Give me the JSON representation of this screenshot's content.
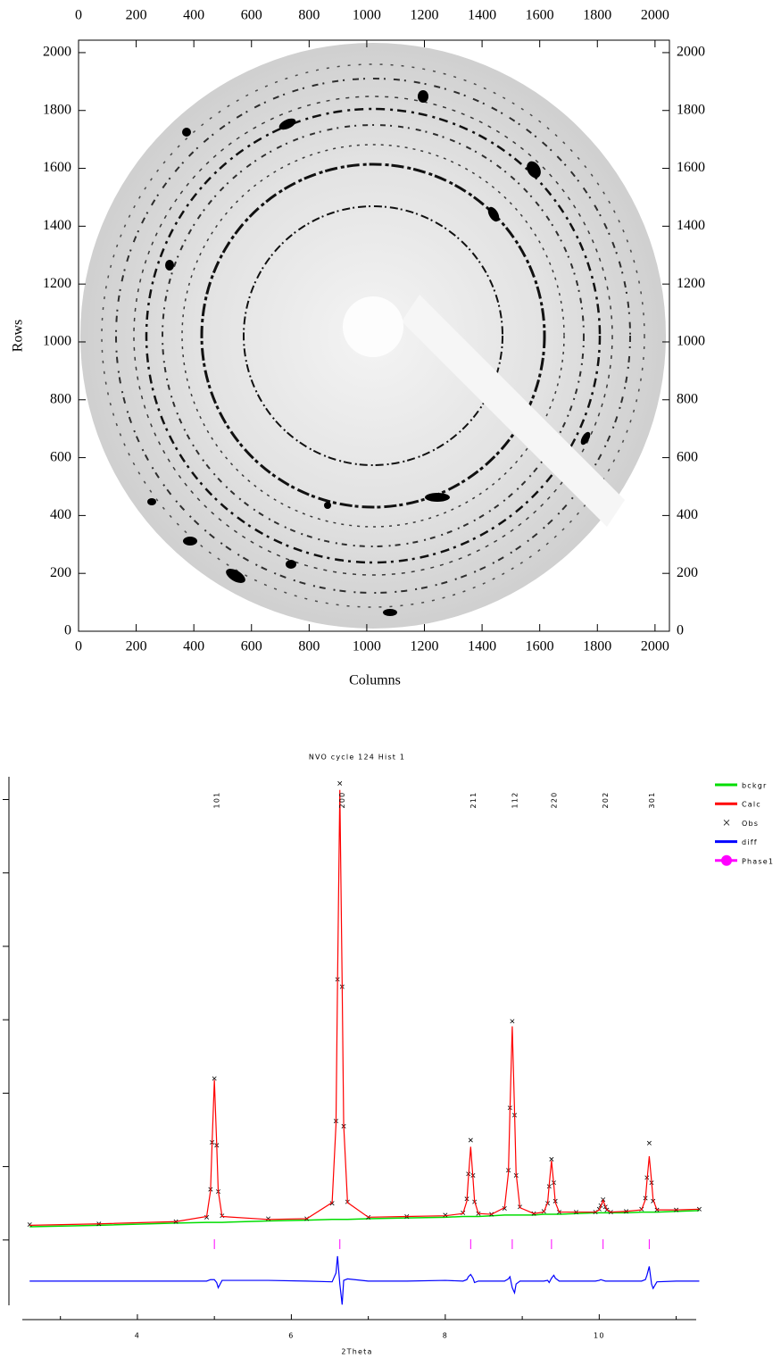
{
  "chart_data": [
    {
      "type": "image",
      "xlabel": "Columns",
      "ylabel": "Rows",
      "xlim": [
        0,
        2050
      ],
      "ylim": [
        0,
        2043
      ],
      "xticks": [
        0,
        200,
        400,
        600,
        800,
        1000,
        1200,
        1400,
        1600,
        1800,
        2000
      ],
      "yticks": [
        0,
        200,
        400,
        600,
        800,
        1000,
        1200,
        1400,
        1600,
        1800,
        2000
      ]
    },
    {
      "type": "line",
      "title": "NVO cycle 124 Hist 1",
      "xlabel": "2Theta",
      "xlim": [
        2.47,
        11.26
      ],
      "ylim": [
        -0.89,
        6.31
      ],
      "xticks": [
        4,
        6,
        8,
        10
      ],
      "xminorticks": [
        3,
        5,
        7,
        9,
        11
      ],
      "yticks": [
        0,
        1,
        2,
        3,
        4,
        5,
        6
      ],
      "show_ytick_labels": false,
      "x": [
        2.6,
        3.5,
        4.5,
        4.9,
        4.95,
        4.97,
        5.0,
        5.03,
        5.05,
        5.1,
        5.7,
        6.2,
        6.53,
        6.58,
        6.6,
        6.63,
        6.66,
        6.68,
        6.73,
        7.0,
        7.5,
        8.0,
        8.23,
        8.28,
        8.3,
        8.33,
        8.36,
        8.38,
        8.43,
        8.6,
        8.77,
        8.82,
        8.84,
        8.87,
        8.9,
        8.92,
        8.97,
        9.15,
        9.28,
        9.33,
        9.35,
        9.38,
        9.41,
        9.43,
        9.48,
        9.7,
        9.95,
        10.0,
        10.02,
        10.05,
        10.08,
        10.1,
        10.15,
        10.35,
        10.55,
        10.6,
        10.62,
        10.65,
        10.68,
        10.7,
        10.75,
        11.0,
        11.3
      ],
      "series": [
        {
          "name": "bckgr",
          "color": "#00dd00",
          "marker": "line",
          "values": [
            0.18,
            0.2,
            0.23,
            0.24,
            0.24,
            0.24,
            0.24,
            0.24,
            0.24,
            0.24,
            0.26,
            0.27,
            0.28,
            0.28,
            0.28,
            0.28,
            0.28,
            0.28,
            0.28,
            0.29,
            0.3,
            0.31,
            0.32,
            0.32,
            0.32,
            0.32,
            0.32,
            0.32,
            0.32,
            0.33,
            0.34,
            0.34,
            0.34,
            0.34,
            0.34,
            0.34,
            0.34,
            0.34,
            0.35,
            0.35,
            0.35,
            0.35,
            0.35,
            0.35,
            0.35,
            0.36,
            0.37,
            0.37,
            0.37,
            0.37,
            0.37,
            0.37,
            0.37,
            0.37,
            0.38,
            0.38,
            0.38,
            0.38,
            0.38,
            0.38,
            0.38,
            0.39,
            0.4
          ]
        },
        {
          "name": "Calc",
          "color": "#ff0000",
          "marker": "line",
          "values": [
            0.2,
            0.22,
            0.25,
            0.32,
            0.67,
            1.31,
            2.18,
            1.31,
            0.67,
            0.32,
            0.28,
            0.29,
            0.51,
            1.57,
            3.5,
            6.13,
            3.5,
            1.57,
            0.51,
            0.31,
            0.32,
            0.33,
            0.36,
            0.53,
            0.84,
            1.27,
            0.84,
            0.53,
            0.36,
            0.35,
            0.44,
            0.91,
            1.75,
            2.91,
            1.75,
            0.91,
            0.44,
            0.36,
            0.38,
            0.51,
            0.75,
            1.08,
            0.75,
            0.51,
            0.38,
            0.38,
            0.38,
            0.41,
            0.46,
            0.54,
            0.46,
            0.41,
            0.38,
            0.39,
            0.41,
            0.55,
            0.8,
            1.14,
            0.8,
            0.55,
            0.41,
            0.41,
            0.42
          ]
        },
        {
          "name": "Obs",
          "color": "#000000",
          "marker": "x",
          "values": [
            0.21,
            0.22,
            0.25,
            0.31,
            0.69,
            1.33,
            2.2,
            1.29,
            0.66,
            0.33,
            0.29,
            0.29,
            0.5,
            1.62,
            3.55,
            6.22,
            3.45,
            1.55,
            0.52,
            0.31,
            0.32,
            0.34,
            0.37,
            0.56,
            0.9,
            1.36,
            0.88,
            0.52,
            0.36,
            0.35,
            0.43,
            0.95,
            1.8,
            2.98,
            1.7,
            0.88,
            0.45,
            0.36,
            0.39,
            0.5,
            0.73,
            1.1,
            0.78,
            0.53,
            0.38,
            0.38,
            0.38,
            0.42,
            0.47,
            0.55,
            0.45,
            0.41,
            0.38,
            0.39,
            0.42,
            0.57,
            0.85,
            1.32,
            0.78,
            0.53,
            0.41,
            0.41,
            0.42
          ]
        },
        {
          "name": "diff",
          "color": "#0000ff",
          "marker": "line",
          "values": [
            -0.56,
            -0.56,
            -0.56,
            -0.56,
            -0.54,
            -0.54,
            -0.54,
            -0.58,
            -0.65,
            -0.55,
            -0.55,
            -0.56,
            -0.57,
            -0.45,
            -0.22,
            -0.6,
            -0.88,
            -0.55,
            -0.53,
            -0.56,
            -0.56,
            -0.55,
            -0.56,
            -0.54,
            -0.5,
            -0.47,
            -0.52,
            -0.58,
            -0.56,
            -0.56,
            -0.56,
            -0.53,
            -0.5,
            -0.65,
            -0.72,
            -0.6,
            -0.56,
            -0.56,
            -0.56,
            -0.55,
            -0.58,
            -0.52,
            -0.48,
            -0.52,
            -0.56,
            -0.56,
            -0.56,
            -0.55,
            -0.54,
            -0.55,
            -0.56,
            -0.56,
            -0.56,
            -0.56,
            -0.56,
            -0.54,
            -0.48,
            -0.36,
            -0.6,
            -0.66,
            -0.57,
            -0.56,
            -0.56
          ]
        },
        {
          "name": "Phase1",
          "color": "#ff00ff",
          "marker": "reflections",
          "x": [
            5.0,
            6.63,
            8.33,
            8.87,
            9.38,
            10.05,
            10.65
          ],
          "labels": [
            "101",
            "200",
            "211",
            "112",
            "220",
            "202",
            "301"
          ]
        }
      ]
    }
  ]
}
